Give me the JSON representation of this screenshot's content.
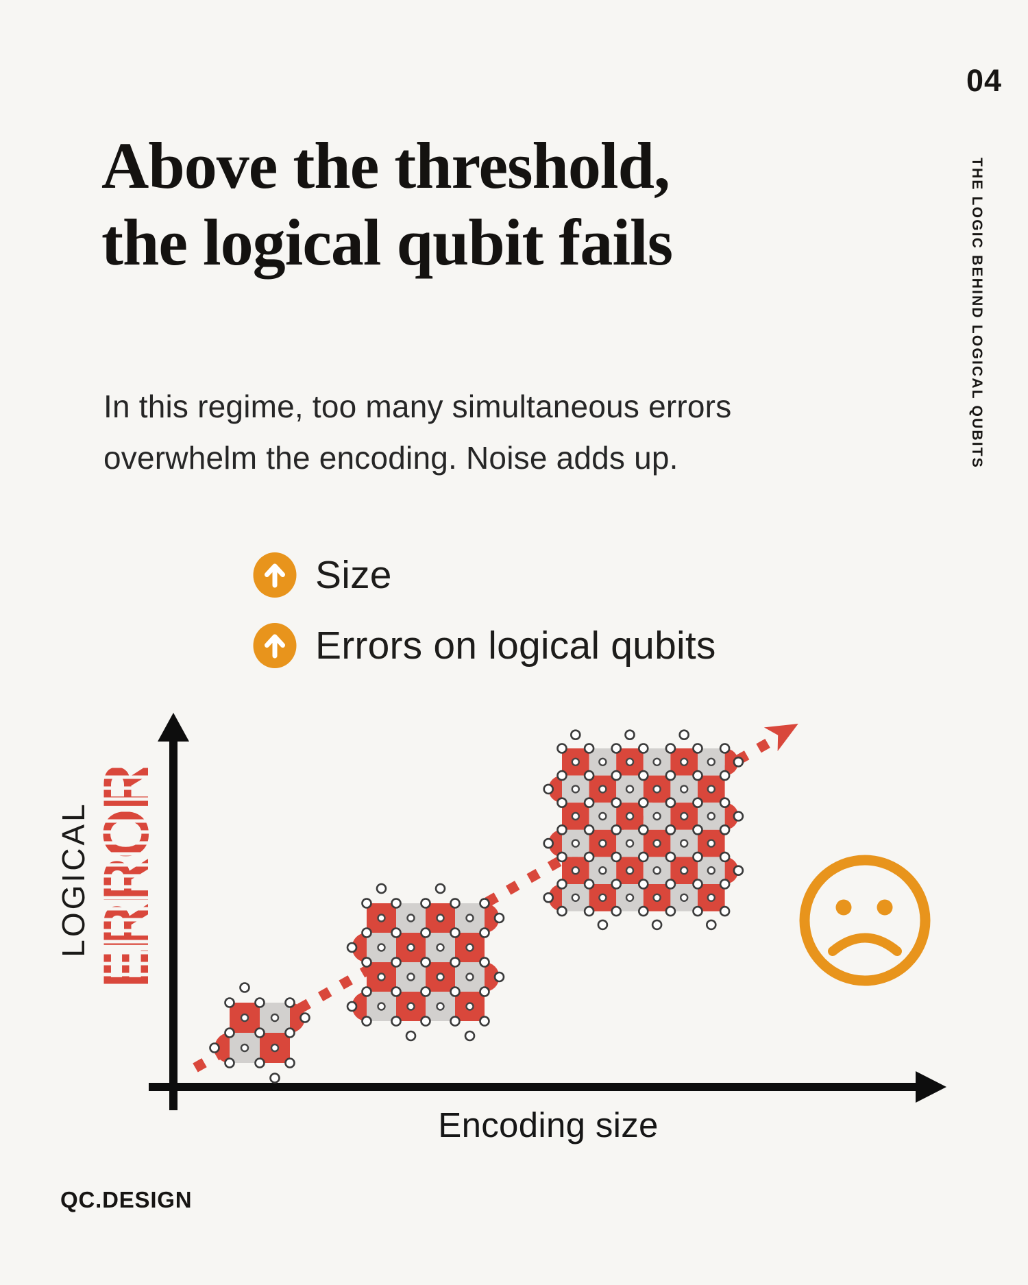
{
  "page": {
    "number": "04",
    "side_label": "THE LOGIC BEHIND LOGICAL QUBITS",
    "brand": "QC.DESIGN"
  },
  "theme": {
    "bg": "#f7f6f3",
    "ink": "#171513",
    "red": "#d9473b",
    "gray": "#d2d0ce",
    "orange": "#e8941c"
  },
  "title": {
    "lines": [
      "Above the threshold,",
      "the logical qubit fails"
    ]
  },
  "intro": {
    "lines": [
      "In this regime, too many simultaneous errors",
      "overwhelm the encoding. Noise adds up."
    ]
  },
  "bullets": {
    "items": [
      {
        "icon": "arrow-up-circle-icon",
        "label": "Size"
      },
      {
        "icon": "arrow-up-circle-icon",
        "label": "Errors on logical qubits"
      }
    ]
  },
  "chart_data": {
    "type": "diagram",
    "title": "",
    "xlabel": "Encoding size",
    "ylabel": "LOGICAL ERROR",
    "ylabel_parts": {
      "black": "LOGICAL",
      "red": "ERROR"
    },
    "trend": "increasing",
    "trend_style": "dotted red arrow, lower-left to upper-right",
    "series": [
      {
        "name": "surface-code patches along trend",
        "points": [
          {
            "encoding_size": "small",
            "grid": "2x2",
            "logical_error": "low"
          },
          {
            "encoding_size": "medium",
            "grid": "4x4",
            "logical_error": "medium"
          },
          {
            "encoding_size": "large",
            "grid": "6x6",
            "logical_error": "high"
          }
        ]
      }
    ],
    "annotations": [
      {
        "name": "sad-face-icon",
        "mood": "sad",
        "color": "#e8941c"
      }
    ],
    "axis_ranges": "unlabeled qualitative axes",
    "grid": "off",
    "patches": [
      {
        "n": 2,
        "x": 335,
        "y": 433,
        "cell": 44
      },
      {
        "n": 4,
        "x": 535,
        "y": 288,
        "cell": 43
      },
      {
        "n": 6,
        "x": 820,
        "y": 62,
        "cell": 39.6
      }
    ],
    "colors": {
      "patch_red": "#d9473b",
      "patch_gray": "#d2d0ce",
      "axis": "#0d0d0d",
      "trend_red": "#d9473b",
      "face_orange": "#e8941c"
    }
  }
}
